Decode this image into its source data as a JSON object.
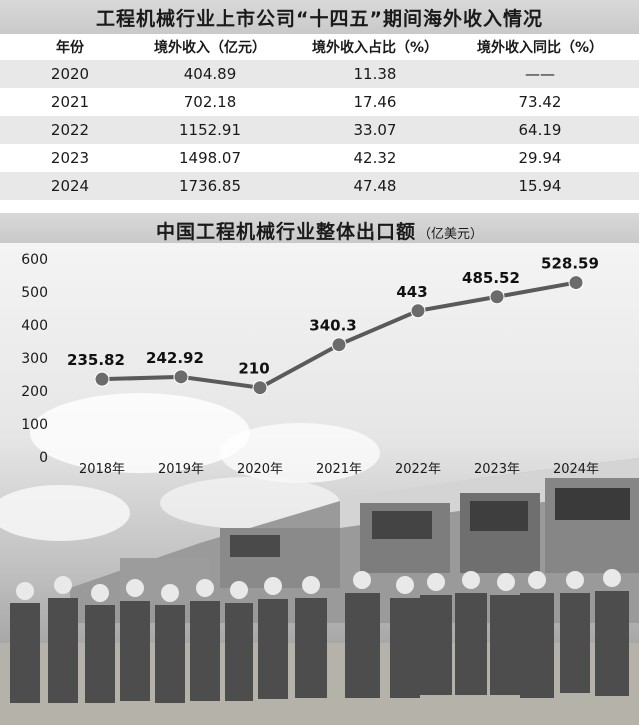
{
  "table": {
    "title": "工程机械行业上市公司“十四五”期间海外收入情况",
    "headers": [
      "年份",
      "境外收入（亿元）",
      "境外收入占比（%）",
      "境外收入同比（%）"
    ],
    "rows": [
      [
        "2020",
        "404.89",
        "11.38",
        "——"
      ],
      [
        "2021",
        "702.18",
        "17.46",
        "73.42"
      ],
      [
        "2022",
        "1152.91",
        "33.07",
        "64.19"
      ],
      [
        "2023",
        "1498.07",
        "42.32",
        "29.94"
      ],
      [
        "2024",
        "1736.85",
        "47.48",
        "15.94"
      ]
    ]
  },
  "chart_title": {
    "main": "中国工程机械行业整体出口额",
    "unit": "（亿美元）"
  },
  "chart_data": {
    "type": "line",
    "title": "中国工程机械行业整体出口额",
    "unit": "（亿美元）",
    "x": [
      "2018年",
      "2019年",
      "2020年",
      "2021年",
      "2022年",
      "2023年",
      "2024年"
    ],
    "values": [
      235.82,
      242.92,
      210,
      340.3,
      443,
      485.52,
      528.59
    ],
    "data_labels": [
      "235.82",
      "242.92",
      "210",
      "340.3",
      "443",
      "485.52",
      "528.59"
    ],
    "yticks": [
      "0",
      "100",
      "200",
      "300",
      "400",
      "500",
      "600"
    ],
    "ylim": [
      0,
      600
    ],
    "grid": false,
    "colors": {
      "line": "#5a5a5a",
      "marker": "#6b6b6b"
    }
  }
}
